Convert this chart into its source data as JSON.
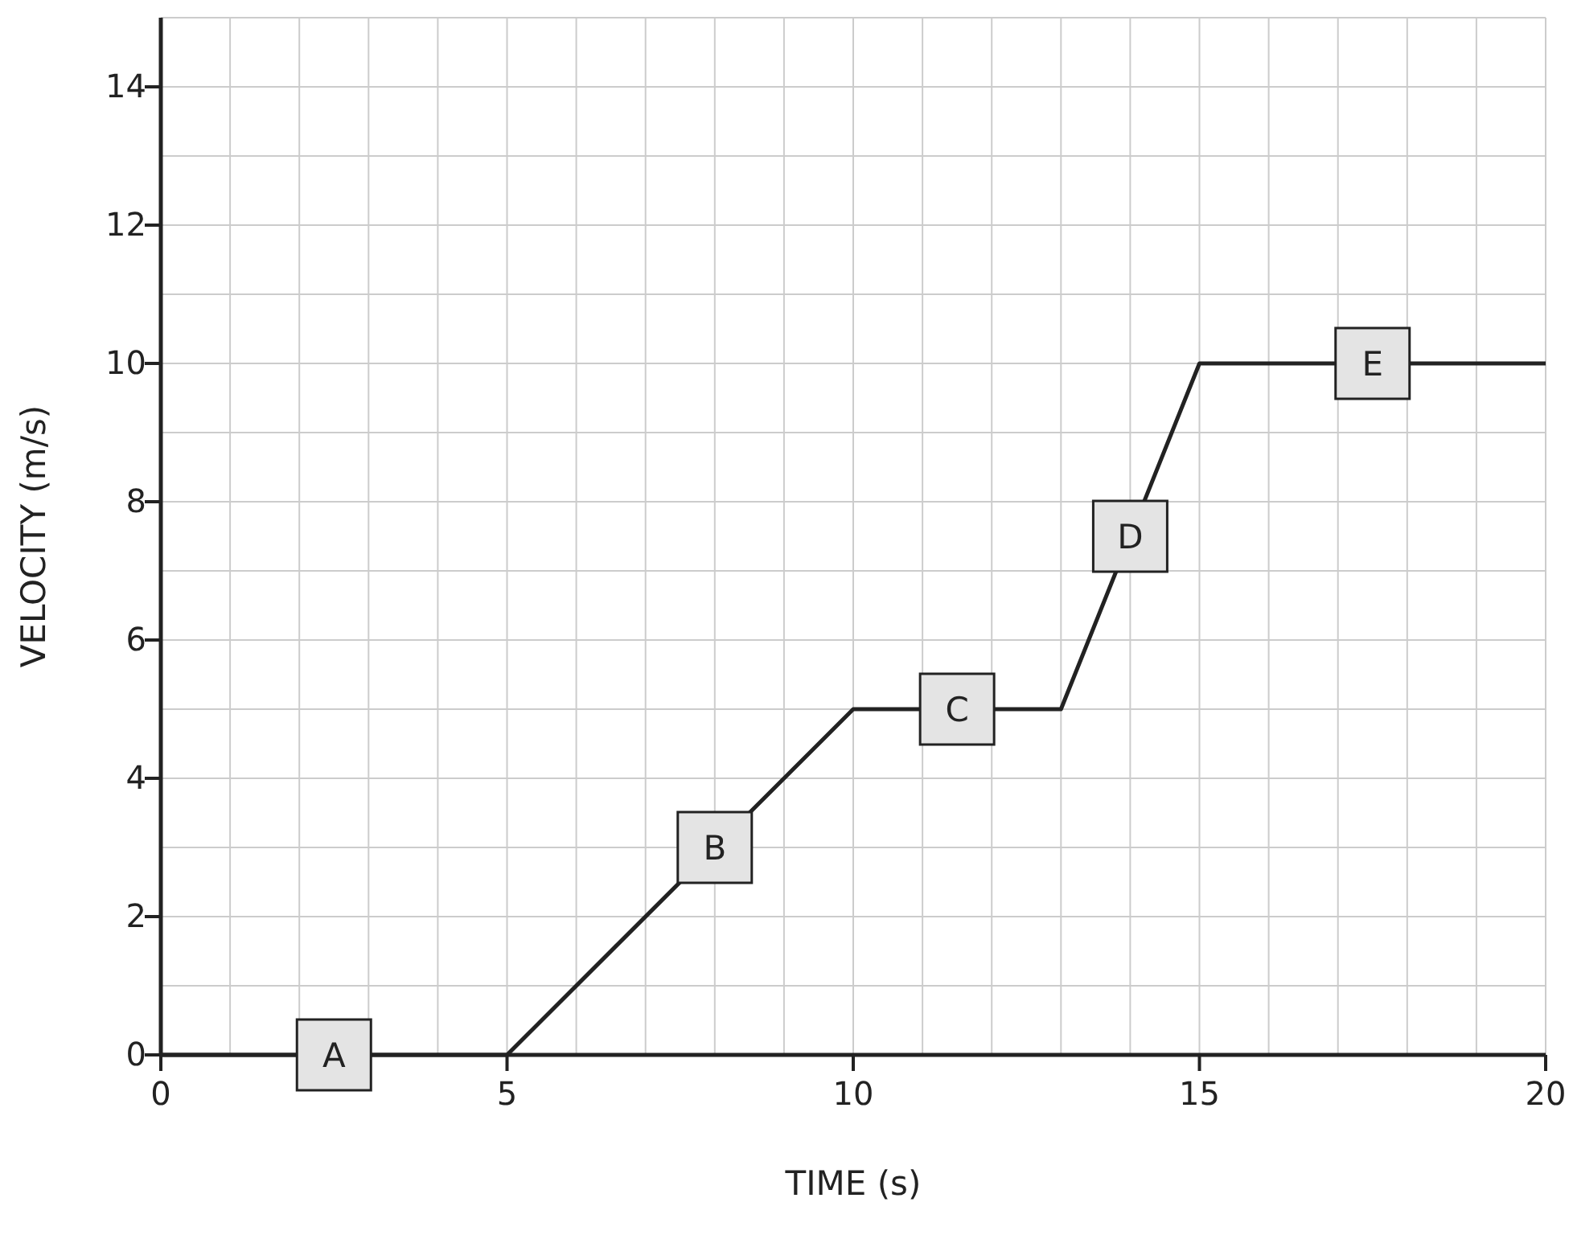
{
  "chart_data": {
    "type": "line",
    "xlabel": "TIME  (s)",
    "ylabel": "VELOCITY  (m/s)",
    "x": [
      0,
      5,
      10,
      13,
      15,
      20
    ],
    "values": [
      0,
      0,
      5,
      5,
      10,
      10
    ],
    "color": "#222222",
    "xlim": [
      0,
      20
    ],
    "ylim": [
      0,
      15
    ],
    "xticks": [
      0,
      {
        "value": 1,
        "label": null
      },
      {
        "value": 2,
        "label": null
      },
      {
        "value": 3,
        "label": null
      },
      {
        "value": 4,
        "label": null
      },
      5,
      {
        "value": 6,
        "label": null
      },
      {
        "value": 7,
        "label": null
      },
      {
        "value": 8,
        "label": null
      },
      {
        "value": 9,
        "label": null
      },
      10,
      {
        "value": 11,
        "label": null
      },
      {
        "value": 12,
        "label": null
      },
      {
        "value": 13,
        "label": null
      },
      {
        "value": 14,
        "label": null
      },
      15,
      {
        "value": 16,
        "label": null
      },
      {
        "value": 17,
        "label": null
      },
      {
        "value": 18,
        "label": null
      },
      {
        "value": 19,
        "label": null
      },
      20
    ],
    "yticks": [
      0,
      {
        "value": 1,
        "label": null
      },
      2,
      {
        "value": 3,
        "label": null
      },
      4,
      {
        "value": 5,
        "label": null
      },
      6,
      {
        "value": 7,
        "label": null
      },
      8,
      {
        "value": 9,
        "label": null
      },
      10,
      {
        "value": 11,
        "label": null
      },
      12,
      {
        "value": 13,
        "label": null
      },
      14,
      {
        "value": 15,
        "label": null
      }
    ],
    "grid": true,
    "marker": "none",
    "line_style": "solid",
    "annotations": [
      {
        "text": "A",
        "x": 2.5,
        "y": 0
      },
      {
        "text": "B",
        "x": 8,
        "y": 3
      },
      {
        "text": "C",
        "x": 11.5,
        "y": 5
      },
      {
        "text": "D",
        "x": 14,
        "y": 7.5
      },
      {
        "text": "E",
        "x": 17.5,
        "y": 10
      }
    ]
  }
}
